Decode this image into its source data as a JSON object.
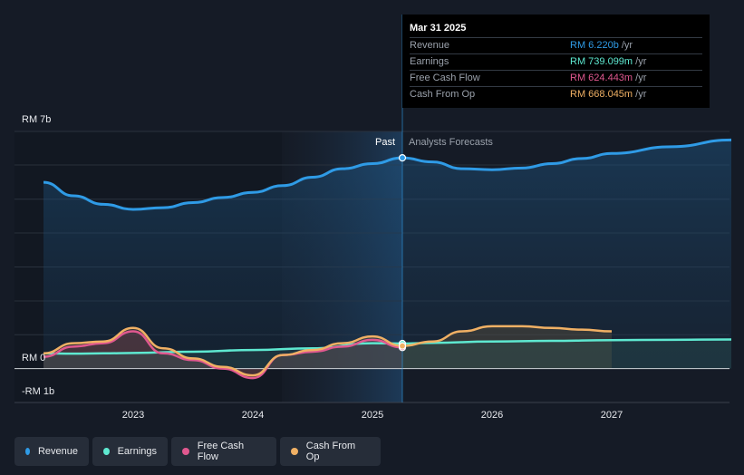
{
  "y_axis": {
    "top_label": "RM 7b",
    "zero_label": "RM 0",
    "bottom_label": "-RM 1b"
  },
  "chart_data": {
    "type": "area",
    "x_ticks": [
      "2023",
      "2024",
      "2025",
      "2026",
      "2027"
    ],
    "ylim": [
      -1.0,
      7.0
    ],
    "unit": "RM b",
    "past_label": "Past",
    "forecast_label": "Analysts Forecasts",
    "divider_x": 2025.25,
    "series": [
      {
        "name": "Revenue",
        "color": "#2f9be6",
        "x": [
          2022.25,
          2022.5,
          2022.75,
          2023.0,
          2023.25,
          2023.5,
          2023.75,
          2024.0,
          2024.25,
          2024.5,
          2024.75,
          2025.0,
          2025.25,
          2025.5,
          2025.75,
          2026.0,
          2026.25,
          2026.5,
          2026.75,
          2027.0,
          2027.5,
          2028.0
        ],
        "y": [
          5.5,
          5.1,
          4.85,
          4.7,
          4.75,
          4.9,
          5.05,
          5.2,
          5.4,
          5.65,
          5.9,
          6.05,
          6.22,
          6.1,
          5.9,
          5.87,
          5.92,
          6.05,
          6.2,
          6.35,
          6.55,
          6.75
        ]
      },
      {
        "name": "Earnings",
        "color": "#5ee8d0",
        "x": [
          2022.25,
          2022.5,
          2022.75,
          2023.0,
          2023.5,
          2024.0,
          2024.5,
          2025.0,
          2025.25,
          2025.5,
          2026.0,
          2026.5,
          2027.0,
          2027.5,
          2028.0
        ],
        "y": [
          0.45,
          0.44,
          0.45,
          0.46,
          0.5,
          0.55,
          0.6,
          0.75,
          0.739,
          0.76,
          0.8,
          0.82,
          0.84,
          0.85,
          0.86
        ]
      },
      {
        "name": "Free Cash Flow",
        "color": "#e0588f",
        "x": [
          2022.25,
          2022.5,
          2022.75,
          2023.0,
          2023.25,
          2023.5,
          2023.75,
          2024.0,
          2024.25,
          2024.5,
          2024.75,
          2025.0,
          2025.25
        ],
        "y": [
          0.35,
          0.65,
          0.75,
          1.1,
          0.45,
          0.25,
          0.0,
          -0.28,
          0.4,
          0.5,
          0.65,
          0.85,
          0.624
        ]
      },
      {
        "name": "Cash From Op",
        "color": "#f0b064",
        "x": [
          2022.25,
          2022.5,
          2022.75,
          2023.0,
          2023.25,
          2023.5,
          2023.75,
          2024.0,
          2024.25,
          2024.5,
          2024.75,
          2025.0,
          2025.25,
          2025.5,
          2025.75,
          2026.0,
          2026.25,
          2026.5,
          2026.75,
          2027.0
        ],
        "y": [
          0.45,
          0.75,
          0.8,
          1.2,
          0.6,
          0.3,
          0.05,
          -0.2,
          0.4,
          0.55,
          0.75,
          0.95,
          0.668,
          0.8,
          1.1,
          1.25,
          1.25,
          1.2,
          1.15,
          1.1
        ]
      }
    ]
  },
  "tooltip": {
    "date": "Mar 31 2025",
    "rows": [
      {
        "name": "Revenue",
        "value": "RM 6.220b",
        "unit": " /yr",
        "color": "#2f9be6"
      },
      {
        "name": "Earnings",
        "value": "RM 739.099m",
        "unit": " /yr",
        "color": "#5ee8d0"
      },
      {
        "name": "Free Cash Flow",
        "value": "RM 624.443m",
        "unit": " /yr",
        "color": "#e0588f"
      },
      {
        "name": "Cash From Op",
        "value": "RM 668.045m",
        "unit": " /yr",
        "color": "#f0b064"
      }
    ]
  },
  "legend": [
    {
      "label": "Revenue",
      "color": "#2f9be6"
    },
    {
      "label": "Earnings",
      "color": "#5ee8d0"
    },
    {
      "label": "Free Cash Flow",
      "color": "#e0588f"
    },
    {
      "label": "Cash From Op",
      "color": "#f0b064"
    }
  ]
}
